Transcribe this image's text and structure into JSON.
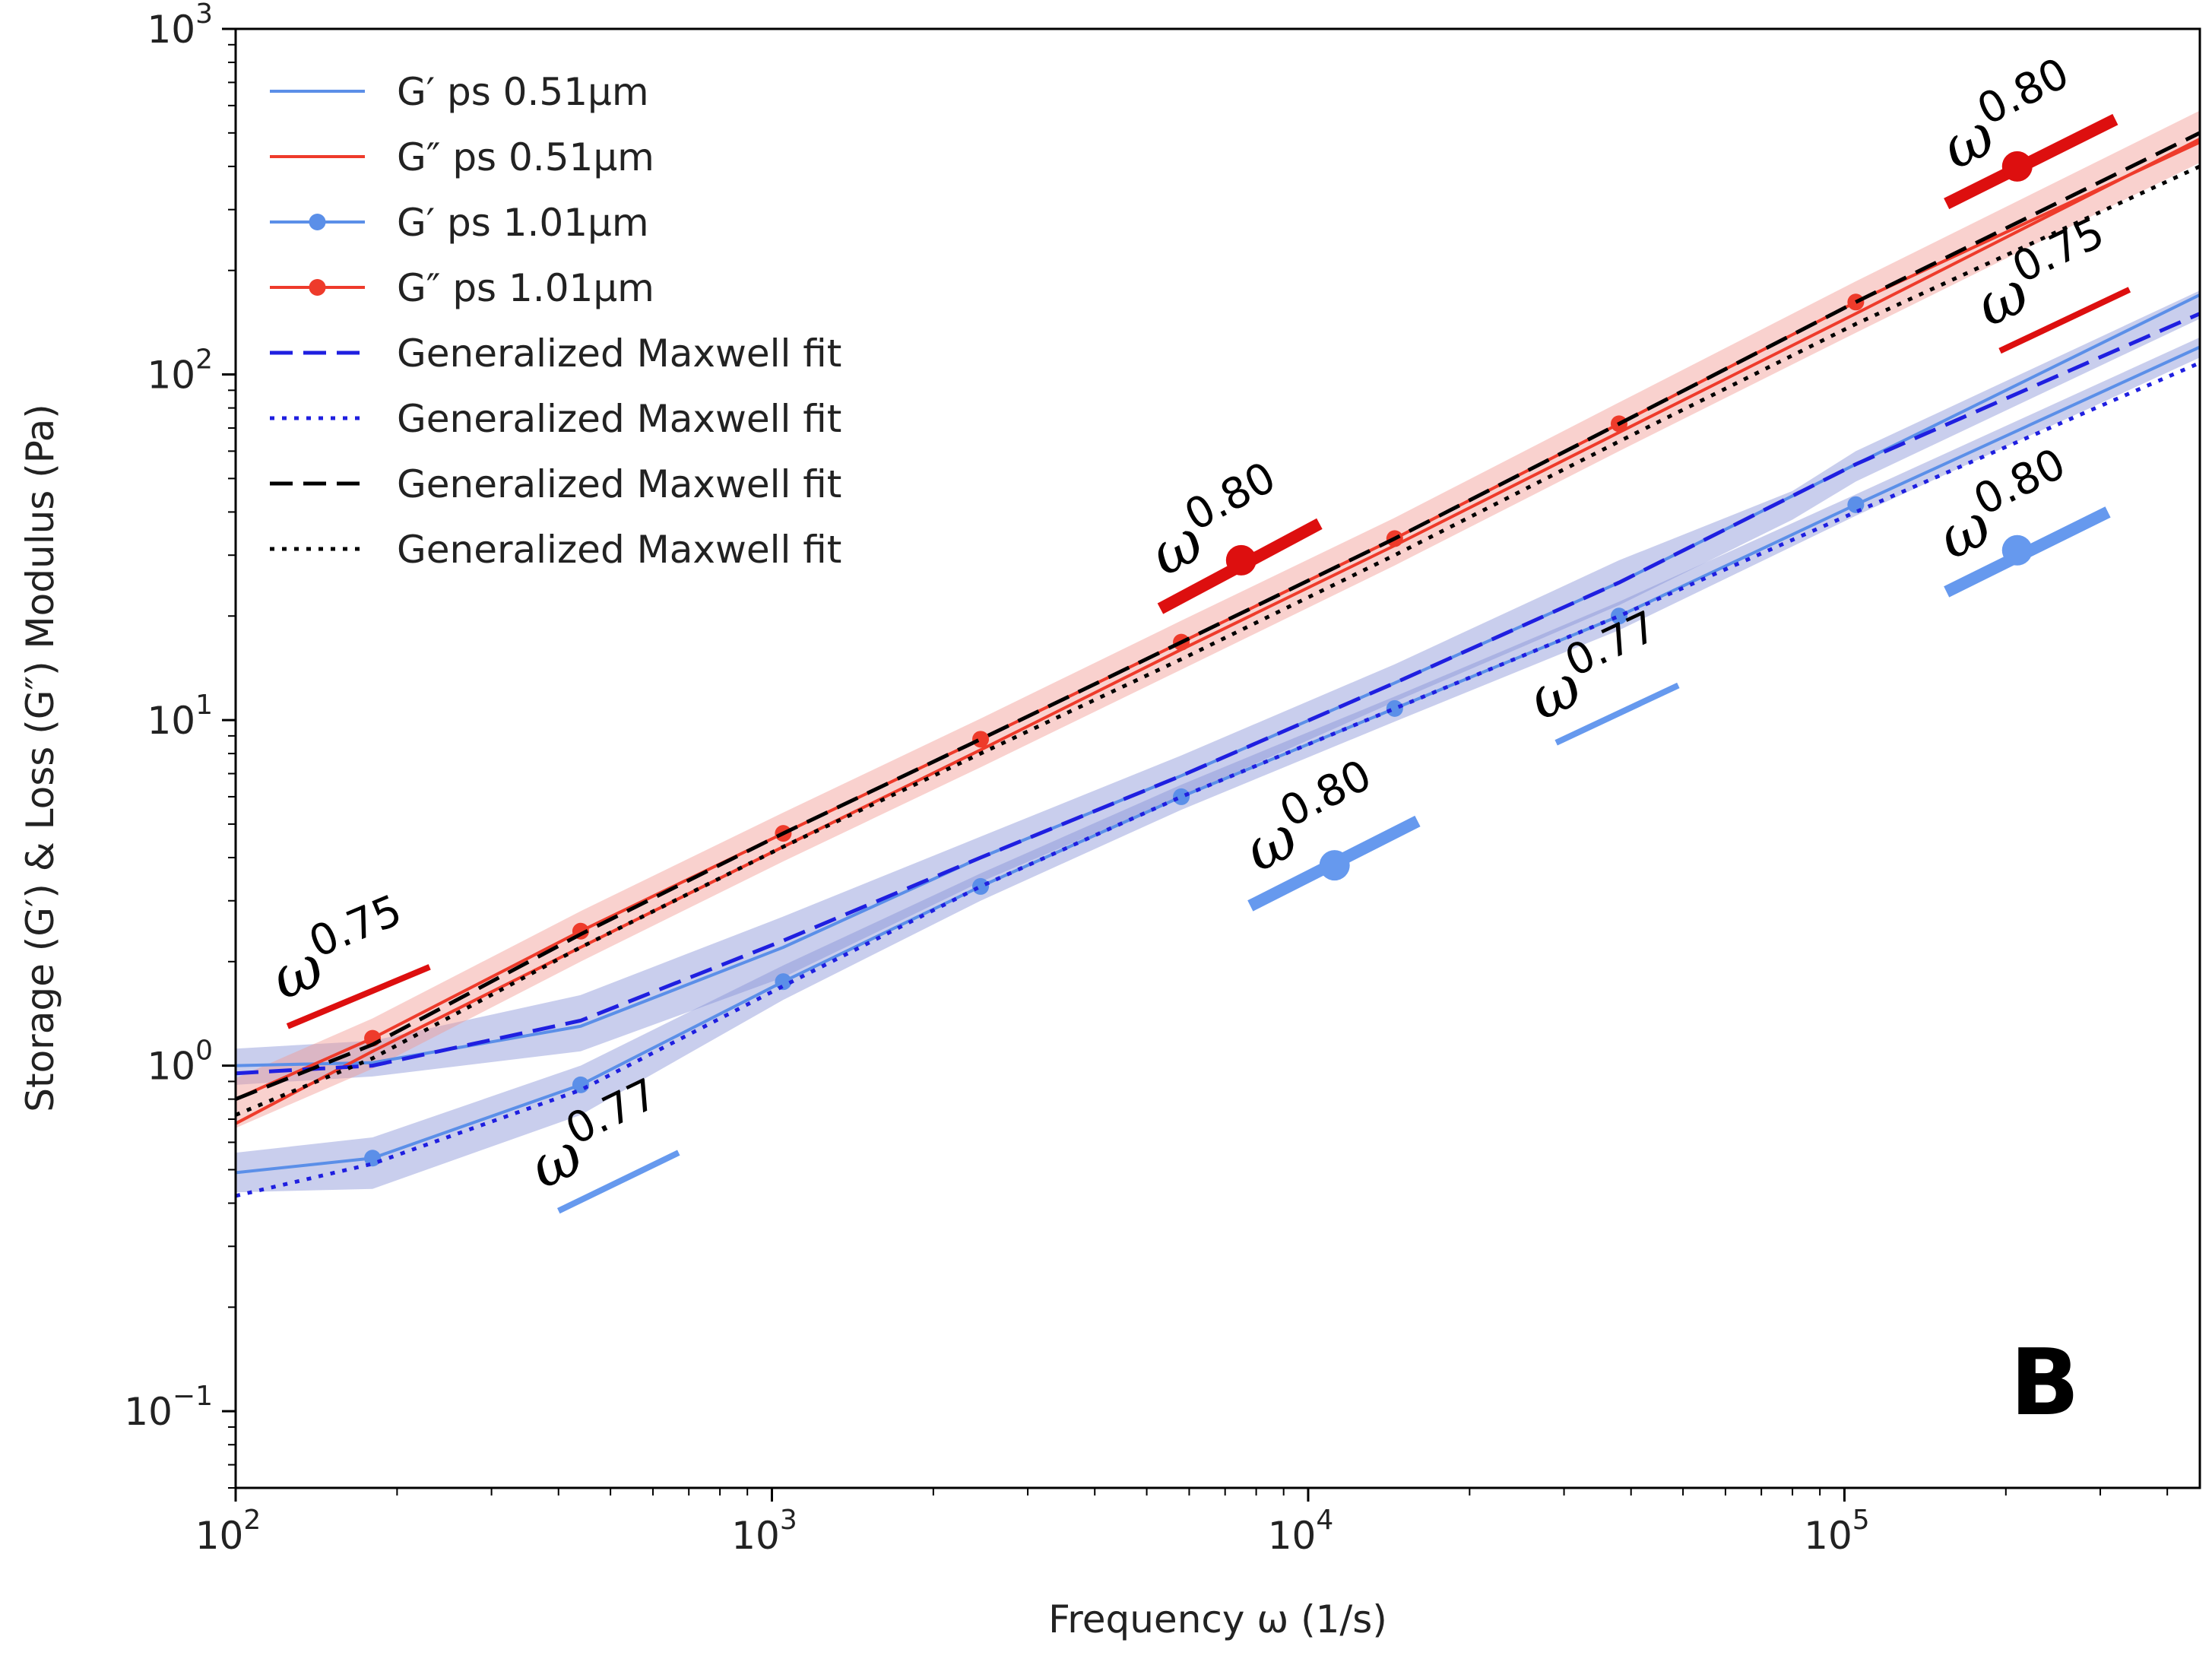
{
  "chart_data": {
    "type": "line",
    "xscale": "log",
    "yscale": "log",
    "xlim": [
      100,
      460000
    ],
    "ylim": [
      0.06,
      1000
    ],
    "xlabel": "Frequency ω (1/s)",
    "ylabel": "Storage (G′) & Loss (G″) Modulus (Pa)",
    "panel_label": "B",
    "x_ticks": [
      100,
      1000,
      10000,
      100000
    ],
    "x_tick_labels": [
      "10^2",
      "10^3",
      "10^4",
      "10^5"
    ],
    "y_ticks": [
      0.1,
      1,
      10,
      100,
      1000
    ],
    "y_tick_labels": [
      "10^-1",
      "10^0",
      "10^1",
      "10^2",
      "10^3"
    ],
    "legend_position": "upper-left",
    "colors": {
      "storage_blue": "#5b8fe8",
      "loss_red": "#ee3b2b",
      "fit_blue": "#1f1fe0",
      "fit_black": "#000000",
      "band_blue": "#8892d8",
      "band_red": "#f29a92",
      "slope_red": "#dd0f0f",
      "slope_blue": "#6699ee"
    },
    "series": [
      {
        "name": "G′ ps 0.51μm",
        "style": "solid",
        "color": "#5b8fe8",
        "x": [
          100,
          180,
          440,
          1050,
          2450,
          5800,
          14500,
          38000,
          105000,
          460000
        ],
        "y": [
          1.0,
          1.02,
          1.3,
          2.2,
          4.0,
          6.9,
          12.8,
          25,
          55,
          170
        ]
      },
      {
        "name": "G″ ps 0.51μm",
        "style": "solid",
        "color": "#ee3b2b",
        "x": [
          100,
          180,
          440,
          1050,
          2450,
          5800,
          14500,
          38000,
          105000,
          460000
        ],
        "y": [
          0.68,
          1.1,
          2.2,
          4.3,
          8.2,
          16,
          32,
          68,
          150,
          480
        ]
      },
      {
        "name": "G′ ps 1.01μm",
        "style": "solid-markers",
        "color": "#5b8fe8",
        "x": [
          100,
          180,
          440,
          1050,
          2450,
          5800,
          14500,
          38000,
          105000,
          460000
        ],
        "y": [
          0.49,
          0.54,
          0.88,
          1.75,
          3.3,
          6.0,
          10.8,
          20,
          42,
          120
        ]
      },
      {
        "name": "G″ ps 1.01μm",
        "style": "solid-markers",
        "color": "#ee3b2b",
        "x": [
          100,
          180,
          440,
          1050,
          2450,
          5800,
          14500,
          38000,
          105000,
          460000
        ],
        "y": [
          0.8,
          1.2,
          2.45,
          4.7,
          8.8,
          16.8,
          33.5,
          72,
          162,
          470
        ]
      },
      {
        "name": "Generalized Maxwell fit",
        "style": "dashed",
        "color": "#1f1fe0",
        "x": [
          100,
          180,
          440,
          1050,
          2450,
          5800,
          14500,
          38000,
          105000,
          460000
        ],
        "y": [
          0.95,
          1.0,
          1.35,
          2.3,
          4.0,
          6.9,
          12.8,
          25,
          55,
          150
        ]
      },
      {
        "name": "Generalized Maxwell fit",
        "style": "dotted",
        "color": "#1f1fe0",
        "x": [
          100,
          180,
          440,
          1050,
          2450,
          5800,
          14500,
          38000,
          105000,
          460000
        ],
        "y": [
          0.42,
          0.52,
          0.85,
          1.7,
          3.3,
          6.0,
          10.8,
          20,
          40,
          108
        ]
      },
      {
        "name": "Generalized Maxwell fit",
        "style": "dashed",
        "color": "#000000",
        "x": [
          100,
          180,
          440,
          1050,
          2450,
          5800,
          14500,
          38000,
          105000,
          460000
        ],
        "y": [
          0.8,
          1.15,
          2.4,
          4.7,
          8.8,
          16.8,
          33.5,
          72,
          162,
          500
        ]
      },
      {
        "name": "Generalized Maxwell fit",
        "style": "dotted",
        "color": "#000000",
        "x": [
          100,
          180,
          440,
          1050,
          2450,
          5800,
          14500,
          38000,
          105000,
          460000
        ],
        "y": [
          0.72,
          1.05,
          2.2,
          4.3,
          8.0,
          15,
          30,
          64,
          140,
          400
        ]
      }
    ],
    "bands": [
      {
        "color": "#8892d8",
        "x": [
          100,
          180,
          440,
          1050,
          2450,
          5800,
          14500,
          38000,
          80000,
          105000,
          460000
        ],
        "upper": [
          1.12,
          1.18,
          1.6,
          2.7,
          4.6,
          7.9,
          14.5,
          29,
          46,
          60,
          175
        ],
        "lower": [
          0.88,
          0.93,
          1.1,
          1.8,
          3.4,
          6.0,
          11.3,
          21.5,
          38,
          49,
          145
        ]
      },
      {
        "color": "#8892d8",
        "x": [
          100,
          180,
          440,
          1050,
          2450,
          5800,
          14500,
          38000,
          105000,
          460000
        ],
        "upper": [
          0.56,
          0.62,
          1.0,
          1.95,
          3.6,
          6.5,
          11.7,
          22,
          45,
          128
        ],
        "lower": [
          0.43,
          0.44,
          0.72,
          1.55,
          3.0,
          5.5,
          9.9,
          18.2,
          39,
          112
        ]
      },
      {
        "color": "#f29a92",
        "x": [
          100,
          180,
          440,
          1050,
          2450,
          5800,
          14500,
          38000,
          105000,
          460000
        ],
        "upper": [
          0.92,
          1.37,
          2.8,
          5.4,
          10.1,
          19.4,
          38.5,
          83,
          186,
          580
        ],
        "lower": [
          0.66,
          0.98,
          2.0,
          3.9,
          7.3,
          14,
          28,
          60,
          132,
          410
        ]
      }
    ],
    "annotations": [
      {
        "text": "ω",
        "exponent": "0.75",
        "color": "#dd0f0f",
        "x1": 125,
        "x2": 230,
        "y1": 1.3,
        "y2": 1.93,
        "thick": false
      },
      {
        "text": "ω",
        "exponent": "0.80",
        "color": "#dd0f0f",
        "x1": 5300,
        "x2": 10500,
        "y1": 21,
        "y2": 37,
        "thick": true,
        "marker": [
          7500,
          29
        ]
      },
      {
        "text": "ω",
        "exponent": "0.80",
        "color": "#dd0f0f",
        "x1": 155000,
        "x2": 320000,
        "y1": 312,
        "y2": 547,
        "thick": true,
        "marker": [
          210000,
          400
        ]
      },
      {
        "text": "ω",
        "exponent": "0.75",
        "color": "#dd0f0f",
        "x1": 195000,
        "x2": 340000,
        "y1": 117,
        "y2": 176,
        "thick": false
      },
      {
        "text": "ω",
        "exponent": "0.77",
        "color": "#6699ee",
        "x1": 400,
        "x2": 670,
        "y1": 0.38,
        "y2": 0.56,
        "thick": false
      },
      {
        "text": "ω",
        "exponent": "0.80",
        "color": "#6699ee",
        "x1": 7800,
        "x2": 16000,
        "y1": 2.9,
        "y2": 5.1,
        "thick": true,
        "marker": [
          11200,
          3.8
        ]
      },
      {
        "text": "ω",
        "exponent": "0.77",
        "color": "#6699ee",
        "x1": 29000,
        "x2": 49000,
        "y1": 8.6,
        "y2": 12.6,
        "thick": false
      },
      {
        "text": "ω",
        "exponent": "0.80",
        "color": "#6699ee",
        "x1": 155000,
        "x2": 310000,
        "y1": 23.5,
        "y2": 40,
        "thick": true,
        "marker": [
          210000,
          31
        ]
      }
    ]
  }
}
